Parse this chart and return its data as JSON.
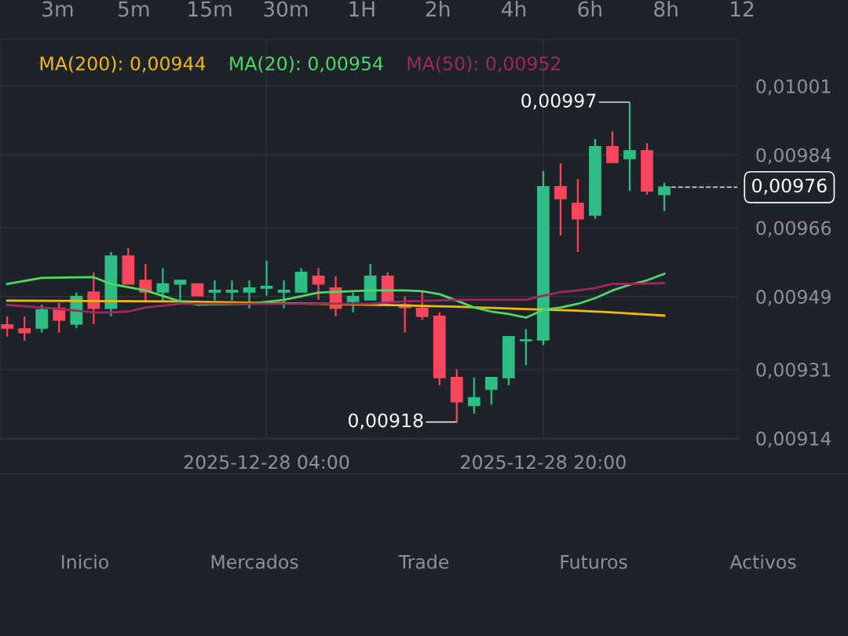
{
  "chart_data": {
    "type": "candlestick",
    "x": [
      "2025-12-27T13:00",
      "2025-12-27T14:00",
      "2025-12-27T15:00",
      "2025-12-27T16:00",
      "2025-12-27T17:00",
      "2025-12-27T18:00",
      "2025-12-27T19:00",
      "2025-12-27T20:00",
      "2025-12-27T21:00",
      "2025-12-27T22:00",
      "2025-12-27T23:00",
      "2025-12-28T00:00",
      "2025-12-28T01:00",
      "2025-12-28T02:00",
      "2025-12-28T03:00",
      "2025-12-28T04:00",
      "2025-12-28T05:00",
      "2025-12-28T06:00",
      "2025-12-28T07:00",
      "2025-12-28T08:00",
      "2025-12-28T09:00",
      "2025-12-28T10:00",
      "2025-12-28T11:00",
      "2025-12-28T12:00",
      "2025-12-28T13:00",
      "2025-12-28T14:00",
      "2025-12-28T15:00",
      "2025-12-28T16:00",
      "2025-12-28T17:00",
      "2025-12-28T18:00",
      "2025-12-28T19:00",
      "2025-12-28T20:00",
      "2025-12-28T21:00",
      "2025-12-28T22:00",
      "2025-12-28T23:00",
      "2025-12-29T00:00",
      "2025-12-29T01:00",
      "2025-12-29T02:00",
      "2025-12-29T03:00"
    ],
    "ohlc": [
      [
        0.00942,
        0.009441,
        0.009391,
        0.009412
      ],
      [
        0.00941,
        0.009441,
        0.009381,
        0.009401
      ],
      [
        0.009412,
        0.00947,
        0.009401,
        0.009457
      ],
      [
        0.009461,
        0.009474,
        0.009401,
        0.009432
      ],
      [
        0.009422,
        0.0095,
        0.009412,
        0.00949
      ],
      [
        0.009501,
        0.00955,
        0.009422,
        0.009461
      ],
      [
        0.009461,
        0.0096,
        0.009441,
        0.00959
      ],
      [
        0.00959,
        0.00961,
        0.009521,
        0.009521
      ],
      [
        0.00953,
        0.009571,
        0.00948,
        0.009501
      ],
      [
        0.009501,
        0.00956,
        0.00948,
        0.009521
      ],
      [
        0.009521,
        0.00953,
        0.00948,
        0.00953
      ],
      [
        0.009521,
        0.009521,
        0.009492,
        0.009492
      ],
      [
        0.009501,
        0.00953,
        0.00948,
        0.009505
      ],
      [
        0.009501,
        0.00953,
        0.00948,
        0.009505
      ],
      [
        0.009501,
        0.00953,
        0.009461,
        0.009511
      ],
      [
        0.009511,
        0.009579,
        0.009492,
        0.009515
      ],
      [
        0.009501,
        0.00953,
        0.009461,
        0.009505
      ],
      [
        0.009501,
        0.00956,
        0.009501,
        0.00955
      ],
      [
        0.00954,
        0.00956,
        0.009482,
        0.009521
      ],
      [
        0.009511,
        0.00954,
        0.009441,
        0.009461
      ],
      [
        0.009478,
        0.0095,
        0.009451,
        0.00949
      ],
      [
        0.009482,
        0.009571,
        0.009482,
        0.00954
      ],
      [
        0.00954,
        0.00955,
        0.009478,
        0.009478
      ],
      [
        0.00947,
        0.00949,
        0.009401,
        0.009463
      ],
      [
        0.009461,
        0.009501,
        0.009432,
        0.009441
      ],
      [
        0.009441,
        0.009451,
        0.009271,
        0.00929
      ],
      [
        0.00929,
        0.00931,
        0.00918,
        0.00923
      ],
      [
        0.009221,
        0.00929,
        0.009201,
        0.00924
      ],
      [
        0.009261,
        0.00929,
        0.009223,
        0.00929
      ],
      [
        0.00929,
        0.009391,
        0.009271,
        0.009391
      ],
      [
        0.009381,
        0.00941,
        0.009321,
        0.009383
      ],
      [
        0.009383,
        0.0098,
        0.00937,
        0.009761
      ],
      [
        0.009761,
        0.009819,
        0.009641,
        0.009732
      ],
      [
        0.00972,
        0.00978,
        0.0096,
        0.009682
      ],
      [
        0.009691,
        0.009879,
        0.009682,
        0.00986
      ],
      [
        0.00986,
        0.009898,
        0.009821,
        0.009821
      ],
      [
        0.009831,
        0.00997,
        0.009751,
        0.00985
      ],
      [
        0.00985,
        0.009869,
        0.009742,
        0.009751
      ],
      [
        0.009742,
        0.009771,
        0.009701,
        0.00976
      ]
    ],
    "colors": [
      "#f6465d",
      "#f6465d",
      "#2ebd85",
      "#f6465d",
      "#2ebd85",
      "#f6465d",
      "#2ebd85",
      "#f6465d",
      "#f6465d",
      "#2ebd85",
      "#2ebd85",
      "#f6465d",
      "#2ebd85",
      "#2ebd85",
      "#2ebd85",
      "#2ebd85",
      "#2ebd85",
      "#2ebd85",
      "#f6465d",
      "#f6465d",
      "#2ebd85",
      "#2ebd85",
      "#f6465d",
      "#f6465d",
      "#f6465d",
      "#f6465d",
      "#f6465d",
      "#2ebd85",
      "#2ebd85",
      "#2ebd85",
      "#2ebd85",
      "#2ebd85",
      "#f6465d",
      "#f6465d",
      "#2ebd85",
      "#f6465d",
      "#2ebd85",
      "#f6465d",
      "#2ebd85"
    ],
    "series": [
      {
        "name": "MA(200): 0,00944",
        "type": "line",
        "color": "#f0b90b",
        "x": [
          "2025-12-27T13:00",
          "2025-12-27T23:00",
          "2025-12-28T04:00",
          "2025-12-28T10:00",
          "2025-12-28T15:00",
          "2025-12-28T19:00",
          "2025-12-28T22:00",
          "2025-12-29T00:00",
          "2025-12-29T03:00"
        ],
        "values": [
          0.00948,
          0.009478,
          0.009474,
          0.00947,
          0.009465,
          0.009459,
          0.009455,
          0.009451,
          0.009443
        ]
      },
      {
        "name": "MA(20): 0,00954",
        "type": "line",
        "color": "#4cd964",
        "x": [
          "2025-12-27T13:00",
          "2025-12-27T15:00",
          "2025-12-27T18:00",
          "2025-12-27T19:00",
          "2025-12-27T21:00",
          "2025-12-27T23:00",
          "2025-12-28T00:00",
          "2025-12-28T03:00",
          "2025-12-28T05:00",
          "2025-12-28T07:00",
          "2025-12-28T10:00",
          "2025-12-28T12:00",
          "2025-12-28T13:00",
          "2025-12-28T14:00",
          "2025-12-28T15:00",
          "2025-12-28T16:00",
          "2025-12-28T17:00",
          "2025-12-28T18:00",
          "2025-12-28T19:00",
          "2025-12-28T20:00",
          "2025-12-28T21:00",
          "2025-12-28T22:00",
          "2025-12-28T23:00",
          "2025-12-29T00:00",
          "2025-12-29T01:00",
          "2025-12-29T02:00",
          "2025-12-29T03:00"
        ],
        "values": [
          0.009521,
          0.009536,
          0.009538,
          0.009521,
          0.009505,
          0.009478,
          0.00947,
          0.009472,
          0.009482,
          0.0095,
          0.009505,
          0.009505,
          0.009503,
          0.009496,
          0.00948,
          0.009463,
          0.009453,
          0.009447,
          0.009438,
          0.009457,
          0.009463,
          0.009472,
          0.009486,
          0.009505,
          0.009519,
          0.00953,
          0.009546
        ]
      },
      {
        "name": "MA(50): 0,00952",
        "type": "line",
        "color": "#a0275f",
        "x": [
          "2025-12-27T13:00",
          "2025-12-27T15:00",
          "2025-12-27T17:00",
          "2025-12-27T18:00",
          "2025-12-27T19:00",
          "2025-12-27T20:00",
          "2025-12-27T21:00",
          "2025-12-27T23:00",
          "2025-12-28T00:00",
          "2025-12-28T04:00",
          "2025-12-28T10:00",
          "2025-12-28T12:00",
          "2025-12-28T15:00",
          "2025-12-28T19:00",
          "2025-12-28T20:00",
          "2025-12-28T21:00",
          "2025-12-28T22:00",
          "2025-12-28T23:00",
          "2025-12-29T00:00",
          "2025-12-29T01:00",
          "2025-12-29T03:00"
        ],
        "values": [
          0.009469,
          0.009463,
          0.009455,
          0.009451,
          0.009451,
          0.009453,
          0.009463,
          0.009472,
          0.009472,
          0.009472,
          0.009472,
          0.009478,
          0.009482,
          0.009482,
          0.009492,
          0.009501,
          0.009505,
          0.009511,
          0.009521,
          0.009521,
          0.009523
        ]
      }
    ],
    "xlim": [
      "2025-12-27T12:35",
      "2025-12-29T07:15"
    ],
    "xticks": [
      {
        "value": "2025-12-28T04:00",
        "label": "2025-12-28 04:00"
      },
      {
        "value": "2025-12-28T20:00",
        "label": "2025-12-28 20:00"
      }
    ],
    "ylim": [
      0.009137,
      0.010125
    ],
    "yticks": [
      {
        "value": 0.01001,
        "label": "0,01001"
      },
      {
        "value": 0.00984,
        "label": "0,00984"
      },
      {
        "value": 0.00966,
        "label": "0,00966"
      },
      {
        "value": 0.00949,
        "label": "0,00949"
      },
      {
        "value": 0.00931,
        "label": "0,00931"
      },
      {
        "value": 0.00914,
        "label": "0,00914"
      }
    ],
    "grid": true,
    "legend": "top left",
    "ref_lines": [
      {
        "axis": "y",
        "value": 0.00976,
        "label": "0,00976",
        "color": "#cccccc",
        "line_style": "dashed"
      }
    ],
    "annotations": [
      {
        "text": "0,00997",
        "x": "2025-12-29T01:00",
        "y": 0.00997
      },
      {
        "text": "0,00918",
        "x": "2025-12-28T15:00",
        "y": 0.00918
      },
      "3m",
      "5m",
      "15m",
      "30m",
      "1H",
      "2h",
      "4h",
      "6h",
      "8h",
      "12",
      "Inicio",
      "Mercados",
      "Trade",
      "Futuros",
      "Activos"
    ]
  }
}
